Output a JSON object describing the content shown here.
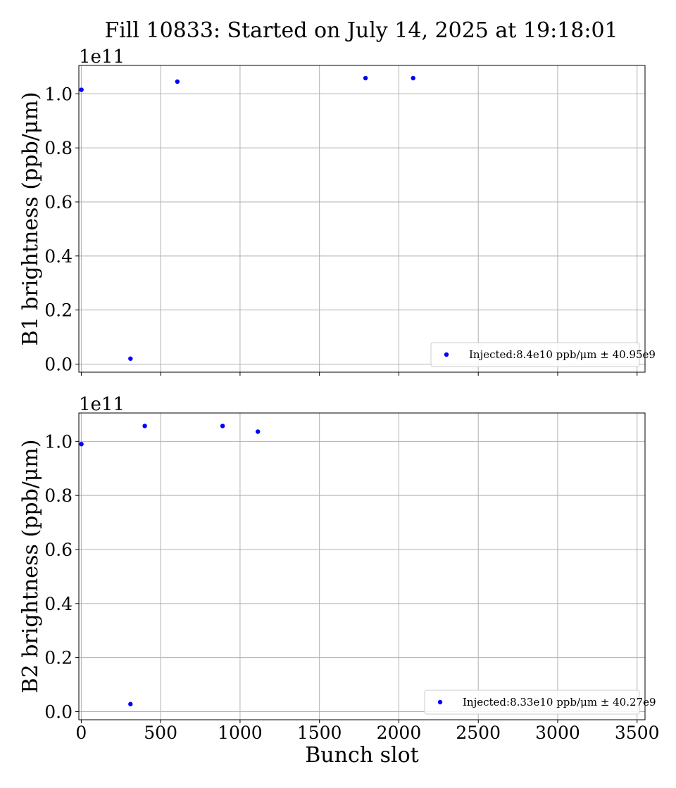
{
  "figure": {
    "title": "Fill 10833: Started on July 14, 2025 at 19:18:01"
  },
  "chart_data": [
    {
      "type": "scatter",
      "ylabel": "B1 brightness (ppb/μm)",
      "xlabel": "",
      "y_multiplier": "1e11",
      "xlim": [
        -15,
        3550
      ],
      "ylim": [
        -0.03,
        1.105
      ],
      "xticks": [
        0,
        500,
        1000,
        1500,
        2000,
        2500,
        3000,
        3500
      ],
      "yticks": [
        0.0,
        0.2,
        0.4,
        0.6,
        0.8,
        1.0
      ],
      "ytick_labels": [
        "0.0",
        "0.2",
        "0.4",
        "0.6",
        "0.8",
        "1.0"
      ],
      "show_xtick_labels": false,
      "grid": true,
      "legend": "lower-right",
      "series": [
        {
          "name": "Injected:8.4e10 ppb/μm ± 40.95e9",
          "color": "#0000ff",
          "x": [
            1,
            310,
            605,
            1790,
            2090
          ],
          "y": [
            1.015,
            0.02,
            1.045,
            1.058,
            1.058
          ]
        }
      ]
    },
    {
      "type": "scatter",
      "ylabel": "B2 brightness (ppb/μm)",
      "xlabel": "Bunch slot",
      "y_multiplier": "1e11",
      "xlim": [
        -15,
        3550
      ],
      "ylim": [
        -0.03,
        1.105
      ],
      "xticks": [
        0,
        500,
        1000,
        1500,
        2000,
        2500,
        3000,
        3500
      ],
      "xtick_labels": [
        "0",
        "500",
        "1000",
        "1500",
        "2000",
        "2500",
        "3000",
        "3500"
      ],
      "yticks": [
        0.0,
        0.2,
        0.4,
        0.6,
        0.8,
        1.0
      ],
      "ytick_labels": [
        "0.0",
        "0.2",
        "0.4",
        "0.6",
        "0.8",
        "1.0"
      ],
      "show_xtick_labels": true,
      "grid": true,
      "legend": "lower-right",
      "series": [
        {
          "name": "Injected:8.33e10 ppb/μm ± 40.27e9",
          "color": "#0000ff",
          "x": [
            1,
            310,
            400,
            890,
            1112
          ],
          "y": [
            0.99,
            0.028,
            1.057,
            1.057,
            1.036
          ]
        }
      ]
    }
  ]
}
